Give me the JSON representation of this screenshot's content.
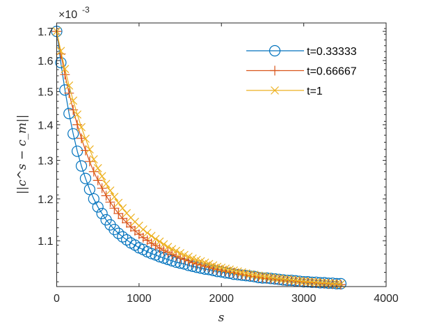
{
  "chart_data": {
    "type": "line",
    "title": "",
    "xlabel": "s",
    "ylabel": "||c^s − c_m||",
    "y_exponent_label": "×10",
    "y_exponent": "-3",
    "xlim": [
      0,
      4000
    ],
    "ylim": [
      1.0,
      1.73
    ],
    "yscale": "log",
    "grid": false,
    "legend_position": "top-right",
    "x_ticks": [
      "0",
      "1000",
      "2000",
      "3000",
      "4000"
    ],
    "y_ticks": [
      "1.1",
      "1.2",
      "1.3",
      "1.4",
      "1.5",
      "1.6",
      "1.7"
    ],
    "x_step": 50,
    "x_start": 0,
    "series": [
      {
        "name": "t=0.33333",
        "color": "#0072BD",
        "marker": "circle",
        "values": [
          1.7,
          1.593,
          1.505,
          1.433,
          1.374,
          1.325,
          1.285,
          1.252,
          1.224,
          1.2,
          1.18,
          1.164,
          1.149,
          1.137,
          1.126,
          1.117,
          1.109,
          1.102,
          1.095,
          1.09,
          1.084,
          1.08,
          1.075,
          1.071,
          1.068,
          1.064,
          1.061,
          1.058,
          1.055,
          1.052,
          1.05,
          1.048,
          1.045,
          1.043,
          1.041,
          1.039,
          1.037,
          1.036,
          1.034,
          1.032,
          1.031,
          1.029,
          1.028,
          1.026,
          1.025,
          1.024,
          1.023,
          1.022,
          1.021,
          1.019,
          1.018,
          1.018,
          1.017,
          1.016,
          1.015,
          1.014,
          1.013,
          1.013,
          1.012,
          1.011,
          1.01,
          1.01,
          1.009,
          1.009,
          1.008,
          1.008,
          1.007,
          1.007,
          1.006,
          1.006
        ]
      },
      {
        "name": "t=0.66667",
        "color": "#D95319",
        "marker": "plus",
        "values": [
          1.7,
          1.622,
          1.554,
          1.495,
          1.444,
          1.4,
          1.361,
          1.327,
          1.297,
          1.27,
          1.247,
          1.227,
          1.208,
          1.192,
          1.177,
          1.164,
          1.152,
          1.142,
          1.132,
          1.123,
          1.115,
          1.107,
          1.101,
          1.094,
          1.089,
          1.083,
          1.078,
          1.074,
          1.069,
          1.065,
          1.061,
          1.058,
          1.055,
          1.051,
          1.048,
          1.046,
          1.043,
          1.041,
          1.038,
          1.036,
          1.034,
          1.032,
          1.03,
          1.029,
          1.027,
          1.025,
          1.024,
          1.022,
          1.021,
          1.02,
          1.018,
          1.017,
          1.016,
          1.015,
          1.014,
          1.013,
          1.012,
          1.012,
          1.011,
          1.01,
          1.009,
          1.009,
          1.008,
          1.007,
          1.007,
          1.006,
          1.006,
          1.005,
          1.005,
          1.004
        ]
      },
      {
        "name": "t=1",
        "color": "#EDB120",
        "marker": "x",
        "values": [
          1.7,
          1.632,
          1.572,
          1.519,
          1.472,
          1.43,
          1.393,
          1.36,
          1.33,
          1.303,
          1.279,
          1.258,
          1.238,
          1.221,
          1.205,
          1.19,
          1.177,
          1.165,
          1.154,
          1.144,
          1.135,
          1.126,
          1.118,
          1.111,
          1.104,
          1.098,
          1.092,
          1.086,
          1.081,
          1.077,
          1.072,
          1.068,
          1.064,
          1.06,
          1.057,
          1.054,
          1.051,
          1.048,
          1.045,
          1.042,
          1.04,
          1.038,
          1.036,
          1.034,
          1.032,
          1.03,
          1.028,
          1.026,
          1.025,
          1.023,
          1.022,
          1.021,
          1.019,
          1.018,
          1.017,
          1.016,
          1.015,
          1.014,
          1.013,
          1.012,
          1.011,
          1.01,
          1.01,
          1.009,
          1.008,
          1.008,
          1.007,
          1.006,
          1.006,
          1.005
        ]
      }
    ]
  }
}
